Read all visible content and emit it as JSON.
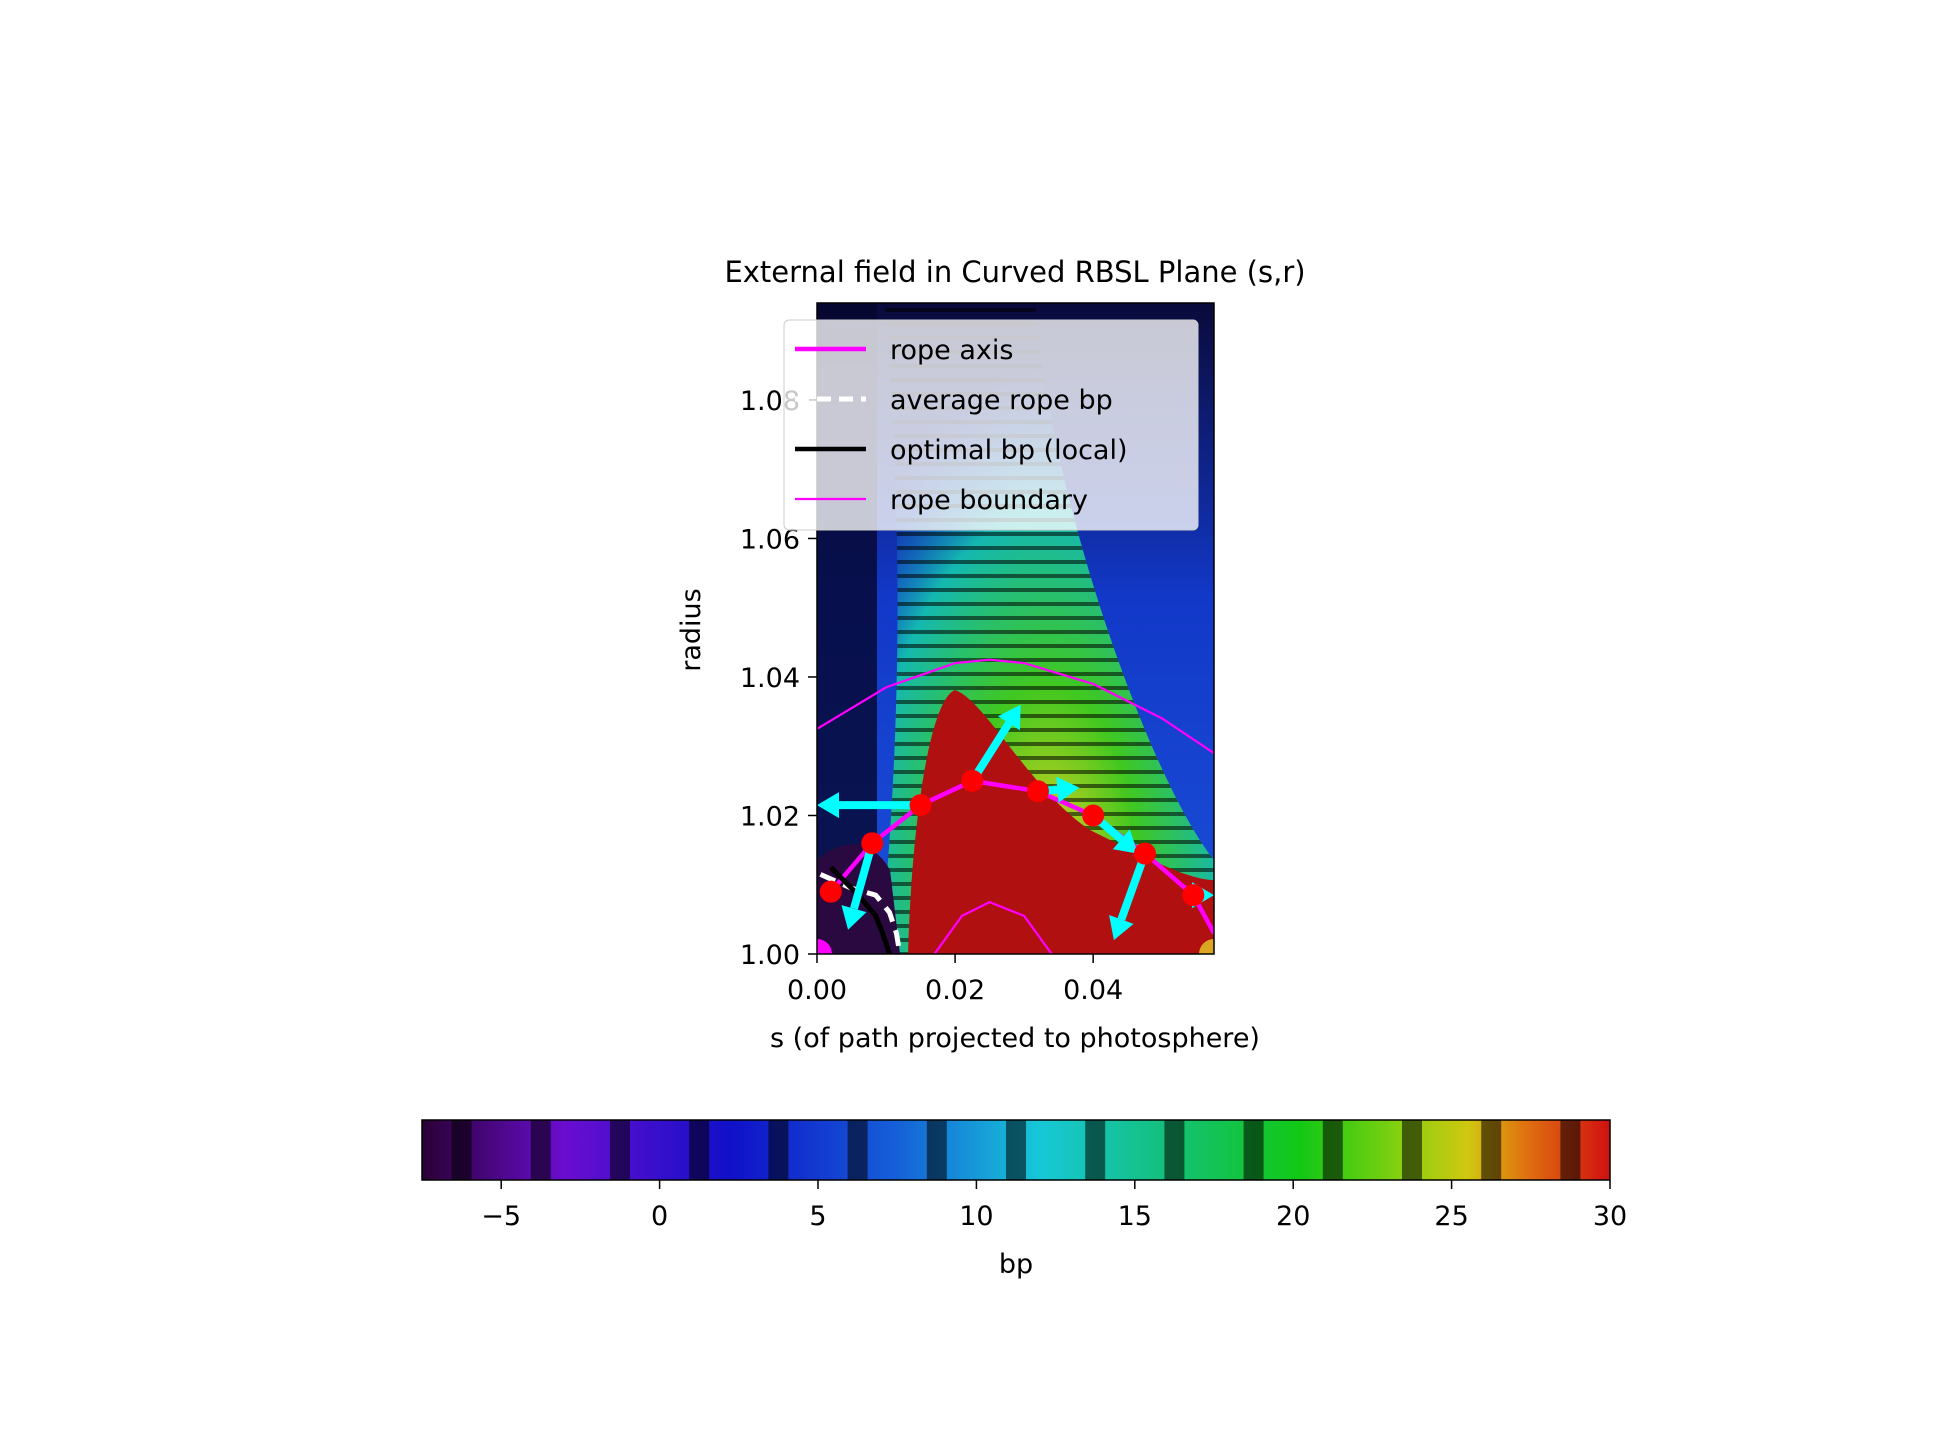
{
  "chart_data": {
    "type": "heatmap",
    "title": "External field in Curved RBSL Plane (s,r)",
    "xlabel": "s (of path projected to photosphere)",
    "ylabel": "radius",
    "xlim": [
      0.0,
      0.0575
    ],
    "ylim": [
      1.0,
      1.094
    ],
    "xticks": [
      0.0,
      0.02,
      0.04
    ],
    "xtick_labels": [
      "0.00",
      "0.02",
      "0.04"
    ],
    "yticks": [
      1.0,
      1.02,
      1.04,
      1.06,
      1.08
    ],
    "ytick_labels": [
      "1.00",
      "1.02",
      "1.04",
      "1.06",
      "1.08"
    ],
    "legend_position": "upper-right",
    "legend": [
      {
        "label": "rope axis",
        "color": "#ff00ff",
        "style": "solid-thick"
      },
      {
        "label": "average rope bp",
        "color": "#ffffff",
        "style": "dashed"
      },
      {
        "label": "optimal bp (local)",
        "color": "#000000",
        "style": "solid-thick"
      },
      {
        "label": "rope boundary",
        "color": "#ff00ff",
        "style": "solid-thin"
      }
    ],
    "series": [
      {
        "name": "rope axis",
        "x": [
          0.002,
          0.008,
          0.015,
          0.0225,
          0.032,
          0.04,
          0.0475,
          0.0545,
          0.0575
        ],
        "y": [
          1.009,
          1.016,
          1.0215,
          1.025,
          1.0235,
          1.02,
          1.0145,
          1.0085,
          1.003
        ]
      },
      {
        "name": "rope boundary",
        "x": [
          0.0,
          0.01,
          0.02,
          0.025,
          0.03,
          0.04,
          0.05,
          0.0575
        ],
        "y": [
          1.0325,
          1.0385,
          1.042,
          1.0425,
          1.042,
          1.039,
          1.034,
          1.029
        ]
      },
      {
        "name": "rope boundary",
        "x": [
          0.017,
          0.021,
          0.025,
          0.03,
          0.034
        ],
        "y": [
          1.0,
          1.0055,
          1.0075,
          1.0055,
          1.0
        ]
      },
      {
        "name": "average rope bp",
        "x": [
          0.0005,
          0.005,
          0.0085,
          0.0105,
          0.0115,
          0.012
        ],
        "y": [
          1.0115,
          1.0095,
          1.0085,
          1.006,
          1.003,
          1.0
        ]
      },
      {
        "name": "optimal bp (local)",
        "x": [
          0.002,
          0.006,
          0.0085,
          0.0095,
          0.0105
        ],
        "y": [
          1.0125,
          1.0085,
          1.0055,
          1.003,
          1.0
        ]
      }
    ],
    "markers": {
      "points": {
        "color": "#ff0000",
        "x": [
          0.002,
          0.008,
          0.015,
          0.0225,
          0.032,
          0.04,
          0.0475,
          0.0545
        ],
        "y": [
          1.009,
          1.016,
          1.0215,
          1.025,
          1.0235,
          1.02,
          1.0145,
          1.0085
        ]
      },
      "footpoints": [
        {
          "x": 0.0,
          "y": 1.0,
          "color": "#ff00ff"
        },
        {
          "x": 0.0575,
          "y": 1.0,
          "color": "#daa520"
        }
      ]
    },
    "vectors": {
      "color": "#00ffff",
      "items": [
        {
          "x0": 0.008,
          "y0": 1.016,
          "x1": 0.0045,
          "y1": 1.0035
        },
        {
          "x0": 0.015,
          "y0": 1.0215,
          "x1": 0.0,
          "y1": 1.0215
        },
        {
          "x0": 0.0225,
          "y0": 1.025,
          "x1": 0.0295,
          "y1": 1.036
        },
        {
          "x0": 0.032,
          "y0": 1.0235,
          "x1": 0.038,
          "y1": 1.024
        },
        {
          "x0": 0.04,
          "y0": 1.02,
          "x1": 0.0465,
          "y1": 1.0145
        },
        {
          "x0": 0.0475,
          "y0": 1.0145,
          "x1": 0.043,
          "y1": 1.002
        },
        {
          "x0": 0.0545,
          "y0": 1.0085,
          "x1": 0.0575,
          "y1": 1.0085
        }
      ]
    },
    "colorbar": {
      "label": "bp",
      "orientation": "horizontal",
      "range": [
        -7.5,
        30
      ],
      "ticks": [
        -5,
        0,
        5,
        10,
        15,
        20,
        25,
        30
      ],
      "tick_labels": [
        "−5",
        "0",
        "5",
        "10",
        "15",
        "20",
        "25",
        "30"
      ],
      "colormap": "nipy_spectral-like with periodic dark banding"
    }
  }
}
